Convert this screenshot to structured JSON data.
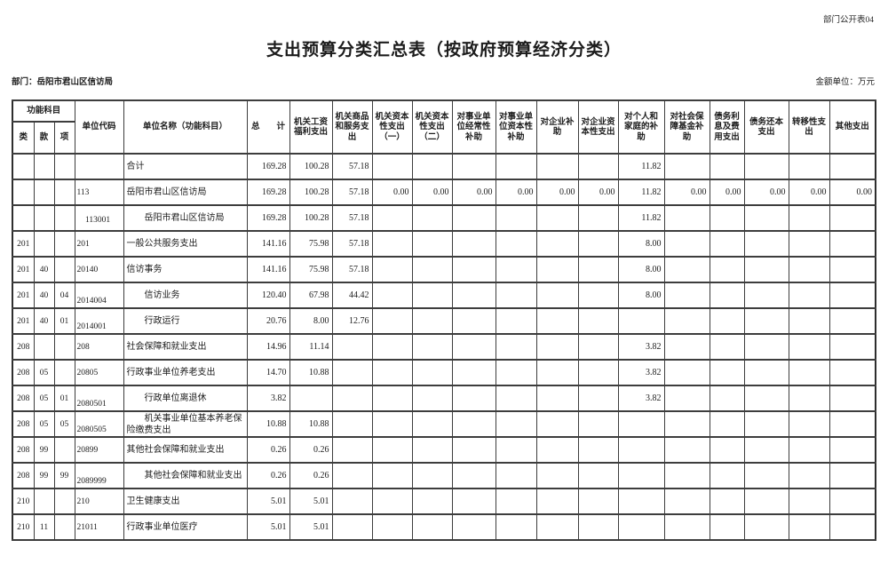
{
  "meta": {
    "doc_code": "部门公开表04",
    "title": "支出预算分类汇总表（按政府预算经济分类）",
    "department_label": "部门：岳阳市君山区信访局",
    "unit_label": "金额单位：万元"
  },
  "table": {
    "header": {
      "func_group": "功能科目",
      "func_cols": [
        "类",
        "款",
        "项"
      ],
      "unit_code": "单位代码",
      "unit_name": "单位名称（功能科目）",
      "amount_cols": [
        "总　　计",
        "机关工资福利支出",
        "机关商品和服务支出",
        "机关资本性支出（一）",
        "机关资本性支出（二）",
        "对事业单位经常性补助",
        "对事业单位资本性补助",
        "对企业补助",
        "对企业资本性支出",
        "对个人和家庭的补助",
        "对社会保障基金补助",
        "债务利息及费用支出",
        "债务还本支出",
        "转移性支出",
        "其他支出"
      ]
    },
    "rows": [
      {
        "lei": "",
        "kuan": "",
        "xiang": "",
        "code": "",
        "code_bottom": false,
        "name": "合计",
        "values": [
          "169.28",
          "100.28",
          "57.18",
          "",
          "",
          "",
          "",
          "",
          "",
          "11.82",
          "",
          "",
          "",
          "",
          ""
        ]
      },
      {
        "lei": "",
        "kuan": "",
        "xiang": "",
        "code": "113",
        "code_bottom": false,
        "name": "岳阳市君山区信访局",
        "values": [
          "169.28",
          "100.28",
          "57.18",
          "0.00",
          "0.00",
          "0.00",
          "0.00",
          "0.00",
          "0.00",
          "11.82",
          "0.00",
          "0.00",
          "0.00",
          "0.00",
          "0.00"
        ]
      },
      {
        "lei": "",
        "kuan": "",
        "xiang": "",
        "code": "　113001",
        "code_bottom": false,
        "name": "　　岳阳市君山区信访局",
        "values": [
          "169.28",
          "100.28",
          "57.18",
          "",
          "",
          "",
          "",
          "",
          "",
          "11.82",
          "",
          "",
          "",
          "",
          ""
        ]
      },
      {
        "lei": "201",
        "kuan": "",
        "xiang": "",
        "code": "201",
        "code_bottom": false,
        "name": "一般公共服务支出",
        "values": [
          "141.16",
          "75.98",
          "57.18",
          "",
          "",
          "",
          "",
          "",
          "",
          "8.00",
          "",
          "",
          "",
          "",
          ""
        ]
      },
      {
        "lei": "201",
        "kuan": "40",
        "xiang": "",
        "code": "20140",
        "code_bottom": false,
        "name": "信访事务",
        "values": [
          "141.16",
          "75.98",
          "57.18",
          "",
          "",
          "",
          "",
          "",
          "",
          "8.00",
          "",
          "",
          "",
          "",
          ""
        ]
      },
      {
        "lei": "201",
        "kuan": "40",
        "xiang": "04",
        "code": "2014004",
        "code_bottom": true,
        "name": "　　信访业务",
        "values": [
          "120.40",
          "67.98",
          "44.42",
          "",
          "",
          "",
          "",
          "",
          "",
          "8.00",
          "",
          "",
          "",
          "",
          ""
        ]
      },
      {
        "lei": "201",
        "kuan": "40",
        "xiang": "01",
        "code": "2014001",
        "code_bottom": true,
        "name": "　　行政运行",
        "values": [
          "20.76",
          "8.00",
          "12.76",
          "",
          "",
          "",
          "",
          "",
          "",
          "",
          "",
          "",
          "",
          "",
          ""
        ]
      },
      {
        "lei": "208",
        "kuan": "",
        "xiang": "",
        "code": "208",
        "code_bottom": false,
        "name": "社会保障和就业支出",
        "values": [
          "14.96",
          "11.14",
          "",
          "",
          "",
          "",
          "",
          "",
          "",
          "3.82",
          "",
          "",
          "",
          "",
          ""
        ]
      },
      {
        "lei": "208",
        "kuan": "05",
        "xiang": "",
        "code": "20805",
        "code_bottom": false,
        "name": "行政事业单位养老支出",
        "values": [
          "14.70",
          "10.88",
          "",
          "",
          "",
          "",
          "",
          "",
          "",
          "3.82",
          "",
          "",
          "",
          "",
          ""
        ]
      },
      {
        "lei": "208",
        "kuan": "05",
        "xiang": "01",
        "code": "2080501",
        "code_bottom": true,
        "name": "　　行政单位离退休",
        "values": [
          "3.82",
          "",
          "",
          "",
          "",
          "",
          "",
          "",
          "",
          "3.82",
          "",
          "",
          "",
          "",
          ""
        ]
      },
      {
        "lei": "208",
        "kuan": "05",
        "xiang": "05",
        "code": "2080505",
        "code_bottom": true,
        "name": "　　机关事业单位基本养老保险缴费支出",
        "values": [
          "10.88",
          "10.88",
          "",
          "",
          "",
          "",
          "",
          "",
          "",
          "",
          "",
          "",
          "",
          "",
          ""
        ]
      },
      {
        "lei": "208",
        "kuan": "99",
        "xiang": "",
        "code": "20899",
        "code_bottom": false,
        "name": "其他社会保障和就业支出",
        "values": [
          "0.26",
          "0.26",
          "",
          "",
          "",
          "",
          "",
          "",
          "",
          "",
          "",
          "",
          "",
          "",
          ""
        ]
      },
      {
        "lei": "208",
        "kuan": "99",
        "xiang": "99",
        "code": "2089999",
        "code_bottom": true,
        "name": "　　其他社会保障和就业支出",
        "values": [
          "0.26",
          "0.26",
          "",
          "",
          "",
          "",
          "",
          "",
          "",
          "",
          "",
          "",
          "",
          "",
          ""
        ]
      },
      {
        "lei": "210",
        "kuan": "",
        "xiang": "",
        "code": "210",
        "code_bottom": false,
        "name": "卫生健康支出",
        "values": [
          "5.01",
          "5.01",
          "",
          "",
          "",
          "",
          "",
          "",
          "",
          "",
          "",
          "",
          "",
          "",
          ""
        ]
      },
      {
        "lei": "210",
        "kuan": "11",
        "xiang": "",
        "code": "21011",
        "code_bottom": false,
        "name": "行政事业单位医疗",
        "values": [
          "5.01",
          "5.01",
          "",
          "",
          "",
          "",
          "",
          "",
          "",
          "",
          "",
          "",
          "",
          "",
          ""
        ]
      }
    ]
  }
}
